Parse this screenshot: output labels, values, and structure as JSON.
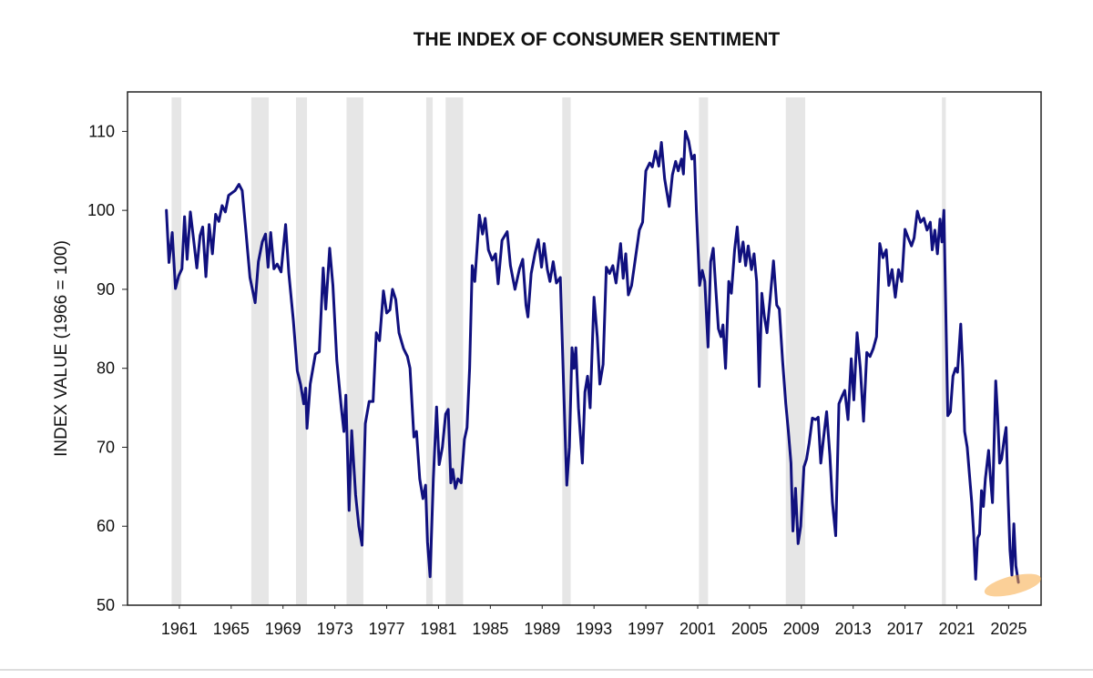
{
  "chart_data": {
    "type": "line",
    "title": "THE INDEX OF CONSUMER SENTIMENT",
    "y_label": "INDEX VALUE (1966 = 100)",
    "color": "#10107e",
    "recession_color": "#e6e6e6",
    "xlim": [
      1957,
      2027.5
    ],
    "ylim": [
      50,
      115
    ],
    "xticks": [
      1961,
      1965,
      1969,
      1973,
      1977,
      1981,
      1985,
      1989,
      1993,
      1997,
      2001,
      2005,
      2009,
      2013,
      2017,
      2021,
      2025
    ],
    "yticks": [
      50,
      60,
      70,
      80,
      90,
      100,
      110
    ],
    "recessions": [
      [
        1960.4,
        1961.15
      ],
      [
        1966.55,
        1967.9
      ],
      [
        1970.0,
        1970.85
      ],
      [
        1973.9,
        1975.2
      ],
      [
        1980.05,
        1980.55
      ],
      [
        1981.55,
        1982.9
      ],
      [
        1990.55,
        1991.2
      ],
      [
        2001.1,
        2001.8
      ],
      [
        2007.8,
        2009.3
      ],
      [
        2019.85,
        2020.15
      ]
    ],
    "x": [
      1960.0,
      1960.2,
      1960.45,
      1960.7,
      1960.95,
      1961.2,
      1961.4,
      1961.6,
      1961.85,
      1962.1,
      1962.35,
      1962.6,
      1962.8,
      1963.05,
      1963.3,
      1963.55,
      1963.8,
      1964.05,
      1964.3,
      1964.55,
      1964.8,
      1965.05,
      1965.3,
      1965.6,
      1965.85,
      1966.1,
      1966.45,
      1966.85,
      1967.1,
      1967.4,
      1967.65,
      1967.85,
      1968.05,
      1968.3,
      1968.55,
      1968.85,
      1969.2,
      1969.45,
      1969.8,
      1970.1,
      1970.35,
      1970.6,
      1970.75,
      1970.85,
      1971.1,
      1971.5,
      1971.8,
      1972.1,
      1972.3,
      1972.6,
      1972.85,
      1973.15,
      1973.5,
      1973.7,
      1973.85,
      1974.1,
      1974.3,
      1974.6,
      1974.85,
      1975.1,
      1975.35,
      1975.65,
      1975.95,
      1976.2,
      1976.45,
      1976.75,
      1977.0,
      1977.25,
      1977.45,
      1977.7,
      1977.95,
      1978.3,
      1978.6,
      1978.8,
      1979.1,
      1979.3,
      1979.55,
      1979.8,
      1980.0,
      1980.15,
      1980.35,
      1980.6,
      1980.85,
      1981.05,
      1981.3,
      1981.55,
      1981.75,
      1981.95,
      1982.1,
      1982.3,
      1982.5,
      1982.75,
      1983.0,
      1983.2,
      1983.4,
      1983.6,
      1983.8,
      1984.15,
      1984.4,
      1984.6,
      1984.85,
      1985.15,
      1985.4,
      1985.6,
      1985.9,
      1986.3,
      1986.55,
      1986.9,
      1987.25,
      1987.5,
      1987.75,
      1987.9,
      1988.15,
      1988.45,
      1988.7,
      1988.95,
      1989.15,
      1989.4,
      1989.6,
      1989.85,
      1990.1,
      1990.4,
      1990.65,
      1990.8,
      1990.9,
      1991.1,
      1991.3,
      1991.45,
      1991.6,
      1991.8,
      1992.1,
      1992.3,
      1992.5,
      1992.7,
      1993.0,
      1993.25,
      1993.45,
      1993.7,
      1993.95,
      1994.2,
      1994.45,
      1994.7,
      1995.05,
      1995.25,
      1995.45,
      1995.65,
      1995.9,
      1996.2,
      1996.5,
      1996.75,
      1997.0,
      1997.3,
      1997.5,
      1997.75,
      1998.0,
      1998.2,
      1998.45,
      1998.8,
      1999.05,
      1999.3,
      1999.5,
      1999.75,
      1999.9,
      2000.05,
      2000.3,
      2000.55,
      2000.75,
      2000.9,
      2001.15,
      2001.35,
      2001.55,
      2001.8,
      2002.0,
      2002.2,
      2002.4,
      2002.6,
      2002.8,
      2002.95,
      2003.15,
      2003.4,
      2003.6,
      2003.85,
      2004.05,
      2004.25,
      2004.5,
      2004.7,
      2004.9,
      2005.15,
      2005.35,
      2005.55,
      2005.75,
      2005.95,
      2006.15,
      2006.35,
      2006.6,
      2006.85,
      2007.1,
      2007.3,
      2007.55,
      2007.8,
      2008.0,
      2008.2,
      2008.35,
      2008.55,
      2008.75,
      2008.95,
      2009.2,
      2009.4,
      2009.6,
      2009.85,
      2010.1,
      2010.3,
      2010.5,
      2010.7,
      2010.95,
      2011.2,
      2011.4,
      2011.65,
      2011.9,
      2012.15,
      2012.35,
      2012.6,
      2012.85,
      2013.05,
      2013.3,
      2013.55,
      2013.8,
      2014.05,
      2014.3,
      2014.55,
      2014.8,
      2015.05,
      2015.3,
      2015.55,
      2015.75,
      2016.0,
      2016.25,
      2016.5,
      2016.75,
      2017.0,
      2017.25,
      2017.5,
      2017.7,
      2017.95,
      2018.2,
      2018.45,
      2018.7,
      2018.95,
      2019.1,
      2019.3,
      2019.5,
      2019.7,
      2019.85,
      2020.0,
      2020.15,
      2020.3,
      2020.5,
      2020.7,
      2020.9,
      2021.05,
      2021.3,
      2021.45,
      2021.6,
      2021.8,
      2021.95,
      2022.15,
      2022.3,
      2022.45,
      2022.6,
      2022.75,
      2022.9,
      2023.05,
      2023.2,
      2023.45,
      2023.6,
      2023.75,
      2023.85,
      2024.0,
      2024.15,
      2024.3,
      2024.45,
      2024.65,
      2024.8,
      2024.95,
      2025.1,
      2025.25,
      2025.4,
      2025.55,
      2025.75
    ],
    "values": [
      100,
      93.4,
      97.2,
      90.1,
      91.7,
      92.6,
      99.2,
      93.8,
      99.8,
      96.3,
      92.7,
      96.8,
      97.9,
      91.6,
      98.2,
      94.5,
      99.5,
      98.6,
      100.6,
      99.8,
      101.9,
      102.2,
      102.5,
      103.3,
      102.5,
      98,
      91.5,
      88.3,
      93.5,
      96,
      97,
      92.8,
      97.2,
      92.6,
      93.2,
      92.2,
      98.2,
      92,
      86,
      79.7,
      78,
      75.5,
      77.5,
      72.4,
      78,
      81.8,
      82.1,
      92.7,
      87.5,
      95.2,
      90.5,
      81,
      75,
      72,
      76.6,
      62,
      72.1,
      64,
      60,
      57.6,
      73,
      75.8,
      75.8,
      84.5,
      83.5,
      89.8,
      87,
      87.4,
      90,
      88.7,
      84.5,
      82.5,
      81.5,
      80,
      71.3,
      72,
      66,
      63.5,
      65.2,
      58,
      53.6,
      66,
      75.1,
      67.8,
      70,
      74.2,
      74.8,
      65.5,
      67.2,
      64.8,
      66,
      65.5,
      71,
      72.5,
      80,
      93,
      91,
      99.4,
      97,
      99,
      95,
      93.7,
      94.5,
      90.7,
      96.2,
      97.3,
      93,
      90,
      92.6,
      93.8,
      88,
      86.5,
      92,
      94.6,
      96.3,
      92.8,
      95.8,
      92.5,
      91,
      93.5,
      90.8,
      91.5,
      78,
      70,
      65.2,
      70,
      82.6,
      80,
      82.6,
      75,
      68,
      77,
      79,
      75,
      89,
      84,
      78,
      80.5,
      92.8,
      92,
      93,
      90.8,
      95.8,
      91.4,
      94.5,
      89.3,
      90.5,
      94,
      97.5,
      98.5,
      105,
      106,
      105.5,
      107.5,
      105.6,
      108.6,
      104,
      100.5,
      104.5,
      106.2,
      105,
      106.5,
      104.6,
      110,
      108.8,
      106.5,
      107,
      100,
      90.5,
      92.4,
      91,
      82.7,
      93.5,
      95.2,
      90,
      85,
      84,
      85.5,
      80,
      91,
      89.5,
      95,
      97.9,
      93.5,
      96,
      93,
      95.5,
      92.5,
      94.5,
      91,
      77.7,
      89.5,
      86.5,
      84.5,
      89,
      93.6,
      88,
      87.5,
      81,
      75.5,
      72,
      68,
      59.4,
      64.8,
      57.8,
      60,
      67.5,
      68.5,
      70.5,
      73.7,
      73.5,
      73.8,
      68,
      71,
      74.5,
      69,
      63,
      58.8,
      75.5,
      76.5,
      77.2,
      73.5,
      81.2,
      76,
      84.5,
      80,
      73.3,
      82,
      81.5,
      82.5,
      84,
      95.8,
      94,
      95,
      90.5,
      92.5,
      89,
      92.5,
      91,
      97.6,
      96.5,
      95.5,
      96.5,
      99.9,
      98.5,
      99,
      97.5,
      98.5,
      95,
      97.5,
      94.5,
      98.9,
      96,
      100,
      87,
      74,
      74.5,
      79,
      80,
      79.5,
      85.6,
      80,
      72,
      70,
      67,
      63,
      59,
      53.3,
      58.5,
      59,
      64.5,
      62.5,
      66,
      69.6,
      66,
      63,
      69,
      78.4,
      74,
      68,
      68.5,
      71,
      72.5,
      64,
      57,
      53.8,
      60.3,
      55,
      52.9
    ]
  }
}
